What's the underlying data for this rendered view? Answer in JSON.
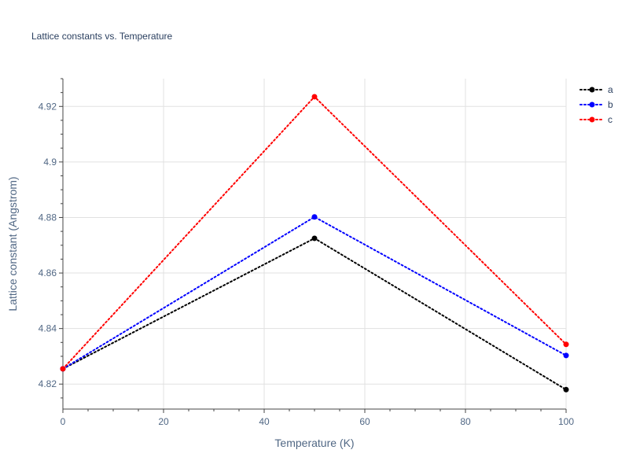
{
  "chart_data": {
    "type": "line",
    "title": "Lattice constants vs. Temperature",
    "xlabel": "Temperature (K)",
    "ylabel": "Lattice constant (Angstrom)",
    "xlim": [
      0,
      100
    ],
    "ylim": [
      4.811,
      4.93
    ],
    "x_ticks": [
      0,
      20,
      40,
      60,
      80,
      100
    ],
    "y_ticks": [
      4.82,
      4.84,
      4.86,
      4.88,
      4.9,
      4.92
    ],
    "y_tick_labels": [
      "4.82",
      "4.84",
      "4.86",
      "4.88",
      "4.9",
      "4.92"
    ],
    "grid": true,
    "legend_position": "top-right",
    "x": [
      0,
      50,
      100
    ],
    "series": [
      {
        "name": "a",
        "color": "#000000",
        "values": [
          4.8255,
          4.8725,
          4.818
        ]
      },
      {
        "name": "b",
        "color": "#0000ff",
        "values": [
          4.8255,
          4.8802,
          4.8303
        ]
      },
      {
        "name": "c",
        "color": "#ff0000",
        "values": [
          4.8255,
          4.9235,
          4.8343
        ]
      }
    ]
  }
}
